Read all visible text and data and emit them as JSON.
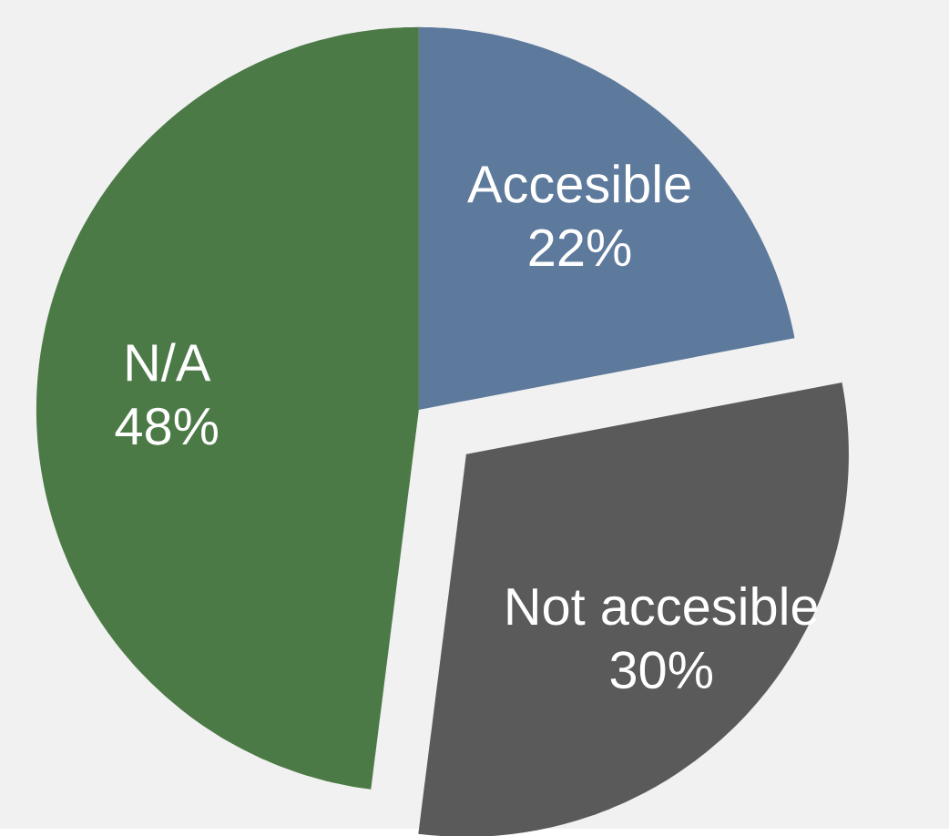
{
  "chart_data": {
    "type": "pie",
    "categories": [
      "Accesible",
      "Not accesible",
      "N/A"
    ],
    "values": [
      22,
      30,
      48
    ],
    "value_labels": [
      "22%",
      "30%",
      "48%"
    ],
    "colors": [
      "#5d7a9c",
      "#5a5a5a",
      "#4c7a46"
    ]
  }
}
